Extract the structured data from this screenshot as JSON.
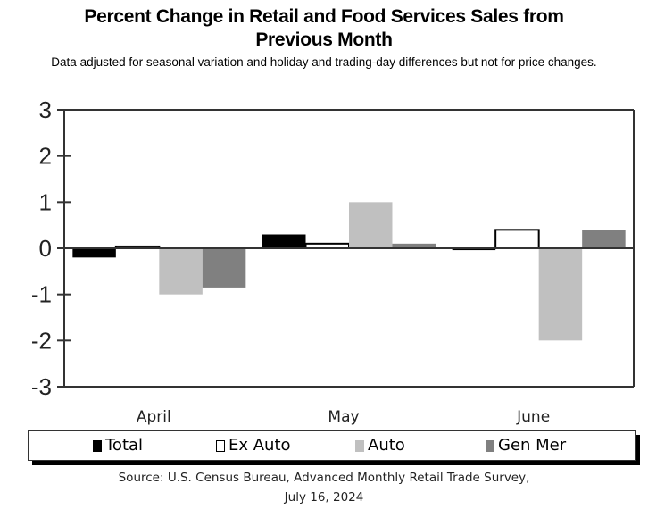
{
  "chart_data": {
    "type": "bar",
    "title": "Percent Change in Retail and Food Services Sales from Previous Month",
    "subtitle": "Data adjusted for seasonal variation and holiday and trading-day differences but not for price changes.",
    "xlabel": "",
    "ylabel": "",
    "ylim": [
      -3,
      3
    ],
    "yticks": [
      "3",
      "2",
      "1",
      "0",
      "-1",
      "-2",
      "-3"
    ],
    "ytick_values": [
      3,
      2,
      1,
      0,
      -1,
      -2,
      -3
    ],
    "categories": [
      "April",
      "May",
      "June"
    ],
    "series": [
      {
        "name": "Total",
        "values": [
          -0.2,
          0.3,
          -0.04
        ],
        "color": "#000000",
        "outline": "#000000"
      },
      {
        "name": "Ex Auto",
        "values": [
          0.04,
          0.1,
          0.4
        ],
        "color": "#ffffff",
        "outline": "#000000"
      },
      {
        "name": "Auto",
        "values": [
          -1.0,
          1.0,
          -2.0
        ],
        "color": "#c0c0c0",
        "outline": "#c0c0c0"
      },
      {
        "name": "Gen Mer",
        "values": [
          -0.85,
          0.1,
          0.4
        ],
        "color": "#808080",
        "outline": "#808080"
      }
    ],
    "grid": false,
    "legend_position": "bottom",
    "source": "Source: U.S. Census Bureau, Advanced Monthly Retail Trade Survey, July 16, 2024"
  },
  "header": {
    "title_line1": "Percent Change in Retail and Food Services Sales from",
    "title_line2": "Previous Month",
    "subtitle": "Data adjusted for seasonal variation and holiday and trading-day differences but not for price changes."
  },
  "legend": {
    "items": [
      {
        "label": "Total"
      },
      {
        "label": "Ex Auto"
      },
      {
        "label": "Auto"
      },
      {
        "label": "Gen Mer"
      }
    ]
  },
  "footer": {
    "source_line1": "Source: U.S. Census Bureau, Advanced Monthly Retail Trade Survey,",
    "source_line2": "July 16, 2024"
  }
}
